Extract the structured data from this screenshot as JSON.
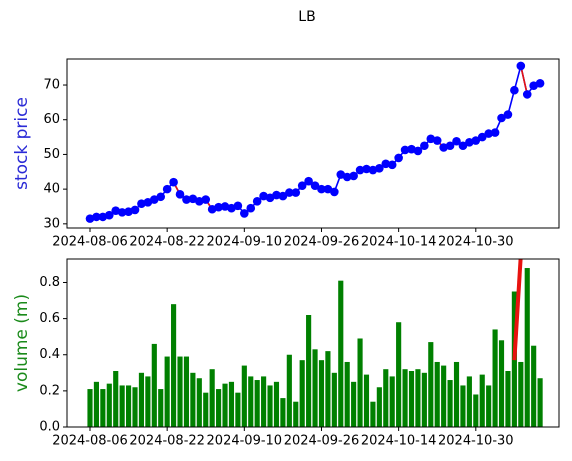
{
  "chart_data": [
    {
      "type": "line",
      "title": "LB",
      "ylabel": "stock price",
      "ylabel_color": "#2a2ad6",
      "x": [
        "2024-08-06",
        "2024-08-07",
        "2024-08-08",
        "2024-08-09",
        "2024-08-12",
        "2024-08-13",
        "2024-08-14",
        "2024-08-15",
        "2024-08-16",
        "2024-08-19",
        "2024-08-20",
        "2024-08-21",
        "2024-08-22",
        "2024-08-23",
        "2024-08-26",
        "2024-08-27",
        "2024-08-28",
        "2024-08-29",
        "2024-08-30",
        "2024-09-03",
        "2024-09-04",
        "2024-09-05",
        "2024-09-06",
        "2024-09-09",
        "2024-09-10",
        "2024-09-11",
        "2024-09-12",
        "2024-09-13",
        "2024-09-16",
        "2024-09-17",
        "2024-09-18",
        "2024-09-19",
        "2024-09-20",
        "2024-09-23",
        "2024-09-24",
        "2024-09-25",
        "2024-09-26",
        "2024-09-27",
        "2024-09-30",
        "2024-10-01",
        "2024-10-02",
        "2024-10-03",
        "2024-10-04",
        "2024-10-07",
        "2024-10-08",
        "2024-10-09",
        "2024-10-10",
        "2024-10-11",
        "2024-10-14",
        "2024-10-15",
        "2024-10-16",
        "2024-10-17",
        "2024-10-18",
        "2024-10-21",
        "2024-10-22",
        "2024-10-23",
        "2024-10-24",
        "2024-10-25",
        "2024-10-28",
        "2024-10-29",
        "2024-10-30",
        "2024-10-31",
        "2024-11-01",
        "2024-11-04",
        "2024-11-05",
        "2024-11-06",
        "2024-11-07",
        "2024-11-08",
        "2024-11-11",
        "2024-11-12",
        "2024-11-13"
      ],
      "series": [
        {
          "color": "#0000ff",
          "values": [
            31.5,
            32,
            32,
            32.5,
            33.8,
            33.3,
            33.5,
            34,
            35.8,
            36.2,
            37,
            37.8,
            40,
            42,
            38.5,
            37,
            37.2,
            36.5,
            37,
            34.2,
            34.8,
            35,
            34.5,
            35.2,
            33,
            34.5,
            36.5,
            38,
            37.5,
            38.3,
            38,
            39,
            39,
            41,
            42.3,
            41,
            40,
            40,
            39.2,
            44.2,
            43.5,
            43.8,
            45.5,
            45.8,
            45.5,
            46,
            47.3,
            47,
            49,
            51.3,
            51.5,
            51,
            52.5,
            54.5,
            54,
            52,
            52.5,
            53.8,
            52.5,
            53.5,
            54,
            55,
            56,
            56.3,
            60.5,
            61.5,
            68.5,
            75.5,
            67.3,
            69.8,
            70.5
          ]
        }
      ],
      "highlight_color": "#e8130f",
      "highlight_segments": [
        [
          13,
          19
        ],
        [
          34,
          38
        ],
        [
          53,
          55
        ],
        [
          67,
          68
        ]
      ],
      "ylim": [
        28.8,
        77.5
      ],
      "yticks": [
        30,
        40,
        50,
        60,
        70
      ],
      "xticks": [
        "2024-08-06",
        "2024-08-22",
        "2024-09-10",
        "2024-09-26",
        "2024-10-14",
        "2024-10-30"
      ]
    },
    {
      "type": "bar",
      "ylabel": "volume (m)",
      "ylabel_color": "#1a8a1a",
      "color": "#008000",
      "x": [
        "2024-08-06",
        "2024-08-07",
        "2024-08-08",
        "2024-08-09",
        "2024-08-12",
        "2024-08-13",
        "2024-08-14",
        "2024-08-15",
        "2024-08-16",
        "2024-08-19",
        "2024-08-20",
        "2024-08-21",
        "2024-08-22",
        "2024-08-23",
        "2024-08-26",
        "2024-08-27",
        "2024-08-28",
        "2024-08-29",
        "2024-08-30",
        "2024-09-03",
        "2024-09-04",
        "2024-09-05",
        "2024-09-06",
        "2024-09-09",
        "2024-09-10",
        "2024-09-11",
        "2024-09-12",
        "2024-09-13",
        "2024-09-16",
        "2024-09-17",
        "2024-09-18",
        "2024-09-19",
        "2024-09-20",
        "2024-09-23",
        "2024-09-24",
        "2024-09-25",
        "2024-09-26",
        "2024-09-27",
        "2024-09-30",
        "2024-10-01",
        "2024-10-02",
        "2024-10-03",
        "2024-10-04",
        "2024-10-07",
        "2024-10-08",
        "2024-10-09",
        "2024-10-10",
        "2024-10-11",
        "2024-10-14",
        "2024-10-15",
        "2024-10-16",
        "2024-10-17",
        "2024-10-18",
        "2024-10-21",
        "2024-10-22",
        "2024-10-23",
        "2024-10-24",
        "2024-10-25",
        "2024-10-28",
        "2024-10-29",
        "2024-10-30",
        "2024-10-31",
        "2024-11-01",
        "2024-11-04",
        "2024-11-05",
        "2024-11-06",
        "2024-11-07",
        "2024-11-08",
        "2024-11-11",
        "2024-11-12",
        "2024-11-13"
      ],
      "values": [
        0.21,
        0.25,
        0.21,
        0.24,
        0.31,
        0.23,
        0.23,
        0.22,
        0.3,
        0.28,
        0.46,
        0.21,
        0.39,
        0.68,
        0.39,
        0.39,
        0.3,
        0.27,
        0.19,
        0.32,
        0.21,
        0.24,
        0.25,
        0.19,
        0.34,
        0.28,
        0.26,
        0.28,
        0.23,
        0.25,
        0.16,
        0.4,
        0.14,
        0.37,
        0.62,
        0.43,
        0.37,
        0.42,
        0.3,
        0.81,
        0.36,
        0.25,
        0.49,
        0.29,
        0.14,
        0.22,
        0.32,
        0.28,
        0.58,
        0.32,
        0.31,
        0.32,
        0.3,
        0.47,
        0.36,
        0.34,
        0.26,
        0.36,
        0.23,
        0.28,
        0.18,
        0.29,
        0.23,
        0.54,
        0.48,
        0.31,
        0.75,
        0.36,
        0.88,
        0.45,
        0.27
      ],
      "overlay_line": {
        "color": "#e8130f",
        "x": [
          "2024-11-07",
          "2024-11-08"
        ],
        "values": [
          0.37,
          0.95
        ]
      },
      "ylim": [
        0,
        0.93
      ],
      "yticks": [
        {
          "value": 0,
          "label": "0.0"
        },
        {
          "value": 0.2,
          "label": "0.2"
        },
        {
          "value": 0.4,
          "label": "0.4"
        },
        {
          "value": 0.6,
          "label": "0.6"
        },
        {
          "value": 0.8,
          "label": "0.8"
        }
      ],
      "xticks": [
        "2024-08-06",
        "2024-08-22",
        "2024-09-10",
        "2024-09-26",
        "2024-10-14",
        "2024-10-30"
      ]
    }
  ]
}
